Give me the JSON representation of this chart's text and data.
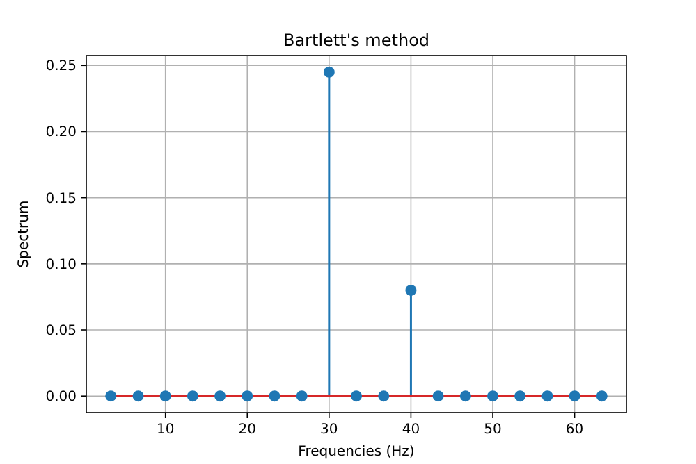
{
  "chart_data": {
    "type": "lollipop",
    "title": "Bartlett's method",
    "xlabel": "Frequencies (Hz)",
    "ylabel": "Spectrum",
    "x": [
      3.33,
      6.67,
      10,
      13.33,
      16.67,
      20,
      23.33,
      26.67,
      30,
      33.33,
      36.67,
      40,
      43.33,
      46.67,
      50,
      53.33,
      56.67,
      60,
      63.33
    ],
    "series": [
      {
        "color": "#1f77b4",
        "values": [
          0,
          0,
          0,
          0,
          0,
          0,
          0,
          0,
          0.245,
          0,
          0,
          0.08,
          0,
          0,
          0,
          0,
          0,
          0,
          0
        ]
      }
    ],
    "ref_lines": [
      {
        "axis": "y",
        "value": 0,
        "color": "#d62728"
      }
    ],
    "xlim": [
      0.33,
      66.33
    ],
    "xticks": [
      10,
      20,
      30,
      40,
      50,
      60
    ],
    "ylim": [
      -0.0125,
      0.2575
    ],
    "yticks": [
      {
        "value": 0,
        "label": "0.00"
      },
      {
        "value": 0.05,
        "label": "0.05"
      },
      {
        "value": 0.1,
        "label": "0.10"
      },
      {
        "value": 0.15,
        "label": "0.15"
      },
      {
        "value": 0.2,
        "label": "0.20"
      },
      {
        "value": 0.25,
        "label": "0.25"
      }
    ],
    "grid": true,
    "marker": "circle"
  }
}
